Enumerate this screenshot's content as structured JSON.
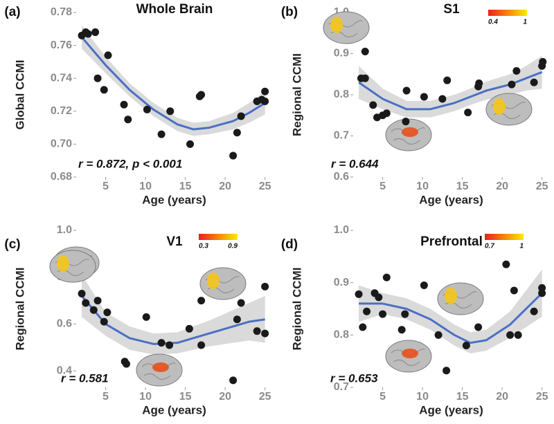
{
  "chart_data": [
    {
      "type": "scatter",
      "panel_label": "(a)",
      "title": "Whole Brain",
      "xlabel": "Age (years)",
      "ylabel": "Global CCMI",
      "annotation": "r = 0.872, p < 0.001",
      "x": [
        2.0,
        2.5,
        2.8,
        3.7,
        4.0,
        4.8,
        5.3,
        7.3,
        7.8,
        10.2,
        12.0,
        13.1,
        15.6,
        16.8,
        17.0,
        21.0,
        21.5,
        22.0,
        24.0,
        24.6,
        25.0,
        25.0
      ],
      "values": [
        0.766,
        0.768,
        0.767,
        0.768,
        0.74,
        0.733,
        0.754,
        0.724,
        0.715,
        0.721,
        0.706,
        0.72,
        0.7,
        0.729,
        0.73,
        0.693,
        0.707,
        0.717,
        0.726,
        0.727,
        0.732,
        0.726
      ],
      "color": "#1a1a1a",
      "fit": {
        "x": [
          2,
          5,
          8,
          11,
          14,
          16,
          18,
          21,
          23,
          25
        ],
        "values": [
          0.765,
          0.748,
          0.733,
          0.721,
          0.712,
          0.709,
          0.71,
          0.714,
          0.719,
          0.725
        ],
        "lower": [
          0.758,
          0.743,
          0.729,
          0.717,
          0.708,
          0.705,
          0.706,
          0.709,
          0.713,
          0.718
        ],
        "upper": [
          0.772,
          0.753,
          0.737,
          0.725,
          0.716,
          0.713,
          0.714,
          0.719,
          0.725,
          0.732
        ],
        "color": "#4a6fc4",
        "band_color": "#d6d6d6"
      },
      "xlim": [
        1.3,
        25.9
      ],
      "ylim": [
        0.68,
        0.78
      ],
      "xticks": [
        5,
        10,
        15,
        20,
        25
      ],
      "yticks": [
        0.68,
        {
          "value": 0.7,
          "label": "0.70"
        },
        0.72,
        0.74,
        0.76,
        0.78
      ]
    },
    {
      "type": "scatter",
      "panel_label": "(b)",
      "title": "S1",
      "xlabel": "Age (years)",
      "ylabel": "Regional CCMI",
      "annotation": "r = 0.644",
      "x": [
        2.3,
        2.8,
        2.8,
        3.8,
        4.3,
        5.0,
        5.5,
        7.9,
        8.0,
        10.2,
        12.5,
        13.1,
        15.7,
        17.0,
        17.1,
        21.2,
        21.8,
        24.0,
        25.0,
        25.1
      ],
      "values": [
        0.84,
        0.905,
        0.84,
        0.775,
        0.745,
        0.75,
        0.755,
        0.735,
        0.81,
        0.795,
        0.79,
        0.835,
        0.757,
        0.82,
        0.828,
        0.825,
        0.858,
        0.83,
        0.87,
        0.88
      ],
      "color": "#1a1a1a",
      "fit": {
        "x": [
          2,
          5,
          8,
          11,
          14,
          16,
          18,
          21,
          23,
          25
        ],
        "values": [
          0.83,
          0.79,
          0.765,
          0.765,
          0.78,
          0.795,
          0.81,
          0.825,
          0.84,
          0.855
        ],
        "lower": [
          0.79,
          0.765,
          0.745,
          0.745,
          0.76,
          0.775,
          0.788,
          0.8,
          0.81,
          0.815
        ],
        "upper": [
          0.87,
          0.815,
          0.785,
          0.785,
          0.8,
          0.815,
          0.832,
          0.85,
          0.87,
          0.895
        ],
        "color": "#4a6fc4",
        "band_color": "#d6d6d6"
      },
      "xlim": [
        1.3,
        25.9
      ],
      "ylim": [
        0.6,
        1.0
      ],
      "xticks": [
        5,
        10,
        15,
        20,
        25
      ],
      "yticks": [
        0.6,
        0.7,
        0.8,
        0.9,
        {
          "value": 1.0,
          "label": "1.0"
        }
      ],
      "colorbar": {
        "colors": [
          "#e8211a",
          "#ffe800"
        ],
        "ticks": [
          0.4,
          1
        ]
      }
    },
    {
      "type": "scatter",
      "panel_label": "(c)",
      "title": "V1",
      "xlabel": "Age (years)",
      "ylabel": "Regional CCMI",
      "annotation": "r = 0.581",
      "x": [
        2.0,
        2.5,
        3.5,
        4.0,
        4.8,
        5.2,
        7.4,
        7.6,
        10.1,
        12.0,
        13.0,
        15.5,
        17.0,
        17.0,
        21.0,
        21.5,
        22.0,
        24.0,
        25.0,
        25.0
      ],
      "values": [
        0.73,
        0.69,
        0.66,
        0.7,
        0.61,
        0.65,
        0.44,
        0.43,
        0.63,
        0.52,
        0.51,
        0.58,
        0.7,
        0.51,
        0.36,
        0.62,
        0.69,
        0.57,
        0.76,
        0.56
      ],
      "color": "#1a1a1a",
      "fit": {
        "x": [
          2,
          5,
          8,
          11,
          14,
          16,
          18,
          21,
          23,
          25
        ],
        "values": [
          0.72,
          0.6,
          0.54,
          0.515,
          0.52,
          0.54,
          0.56,
          0.59,
          0.61,
          0.62
        ],
        "lower": [
          0.63,
          0.55,
          0.49,
          0.47,
          0.475,
          0.49,
          0.505,
          0.52,
          0.53,
          0.52
        ],
        "upper": [
          0.81,
          0.65,
          0.59,
          0.56,
          0.565,
          0.59,
          0.615,
          0.66,
          0.69,
          0.72
        ],
        "color": "#4a6fc4",
        "band_color": "#d6d6d6"
      },
      "xlim": [
        1.3,
        25.9
      ],
      "ylim": [
        0.33,
        1.0
      ],
      "xticks": [
        5,
        10,
        15,
        20,
        25
      ],
      "yticks": [
        0.4,
        0.6,
        0.8,
        {
          "value": 1.0,
          "label": "1.0"
        }
      ],
      "colorbar": {
        "colors": [
          "#e8211a",
          "#ffe800"
        ],
        "ticks": [
          0.3,
          0.9
        ]
      }
    },
    {
      "type": "scatter",
      "panel_label": "(d)",
      "title": "Prefrontal",
      "xlabel": "Age (years)",
      "ylabel": "Regional CCMI",
      "annotation": "r = 0.653",
      "x": [
        2.0,
        2.5,
        3.0,
        4.0,
        4.5,
        5.0,
        5.5,
        7.4,
        7.8,
        10.2,
        12.0,
        13.0,
        15.5,
        17.0,
        20.5,
        21.0,
        21.5,
        22.0,
        24.0,
        25.0,
        25.0
      ],
      "values": [
        0.878,
        0.815,
        0.845,
        0.88,
        0.872,
        0.84,
        0.91,
        0.81,
        0.84,
        0.895,
        0.8,
        0.732,
        0.78,
        0.815,
        0.935,
        0.8,
        0.885,
        0.8,
        0.845,
        0.88,
        0.89
      ],
      "color": "#1a1a1a",
      "fit": {
        "x": [
          2,
          5,
          8,
          11,
          14,
          16,
          18,
          21,
          23,
          25
        ],
        "values": [
          0.86,
          0.86,
          0.85,
          0.83,
          0.8,
          0.785,
          0.79,
          0.82,
          0.85,
          0.88
        ],
        "lower": [
          0.825,
          0.84,
          0.83,
          0.81,
          0.78,
          0.765,
          0.77,
          0.795,
          0.815,
          0.835
        ],
        "upper": [
          0.895,
          0.88,
          0.87,
          0.85,
          0.82,
          0.805,
          0.81,
          0.845,
          0.885,
          0.925
        ],
        "color": "#4a6fc4",
        "band_color": "#d6d6d6"
      },
      "xlim": [
        1.3,
        25.9
      ],
      "ylim": [
        0.7,
        1.0
      ],
      "xticks": [
        5,
        10,
        15,
        20,
        25
      ],
      "yticks": [
        0.7,
        0.8,
        0.9,
        {
          "value": 1.0,
          "label": "1.0"
        }
      ],
      "colorbar": {
        "colors": [
          "#e8211a",
          "#ffe800"
        ],
        "ticks": [
          0.7,
          1
        ]
      }
    }
  ]
}
